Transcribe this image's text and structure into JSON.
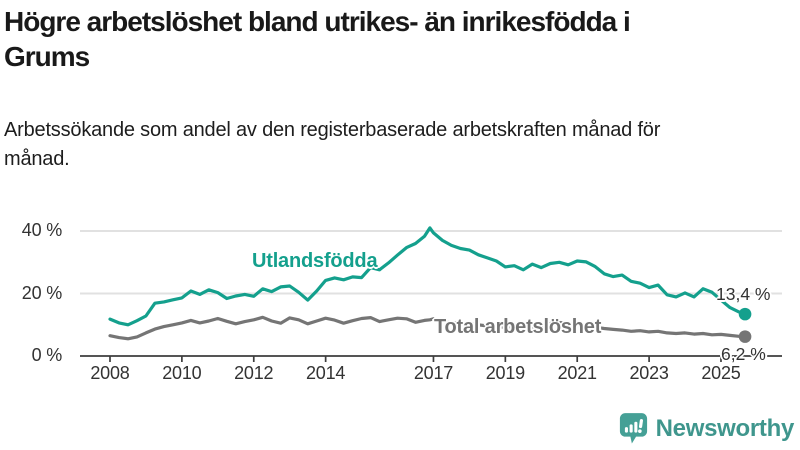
{
  "header": {
    "title": "Högre arbetslöshet bland utrikes- än inrikesfödda i Grums",
    "subtitle": "Arbetssökande som andel av den registerbaserade arbetskraften månad för månad."
  },
  "colors": {
    "series_foreign_born": "#14a08d",
    "series_total": "#757575",
    "gridline": "#e1e1e1",
    "axis": "#3d3d3d",
    "tick_text": "#333333",
    "logo_teal": "#45a096",
    "brand_text": "#3f968d"
  },
  "chart_data": {
    "type": "line",
    "title": "Högre arbetslöshet bland utrikes- än inrikesfödda i Grums",
    "subtitle": "Arbetssökande som andel av den registerbaserade arbetskraften månad för månad.",
    "xlabel": "",
    "ylabel": "",
    "unit": "%",
    "ylim": [
      0,
      44
    ],
    "xlim": [
      2007.2,
      2026.3
    ],
    "grid": "horizontal",
    "y_ticks": [
      {
        "value": 0,
        "label": "0 %"
      },
      {
        "value": 20,
        "label": "20 %"
      },
      {
        "value": 40,
        "label": "40 %"
      }
    ],
    "x_ticks": [
      {
        "value": 2008,
        "label": "2008"
      },
      {
        "value": 2010,
        "label": "2010"
      },
      {
        "value": 2012,
        "label": "2012"
      },
      {
        "value": 2014,
        "label": "2014"
      },
      {
        "value": 2017,
        "label": "2017"
      },
      {
        "value": 2019,
        "label": "2019"
      },
      {
        "value": 2021,
        "label": "2021"
      },
      {
        "value": 2023,
        "label": "2023"
      },
      {
        "value": 2025,
        "label": "2025"
      }
    ],
    "x": [
      2008,
      2008.25,
      2008.5,
      2008.75,
      2009,
      2009.25,
      2009.5,
      2009.75,
      2010,
      2010.25,
      2010.5,
      2010.75,
      2011,
      2011.25,
      2011.5,
      2011.75,
      2012,
      2012.25,
      2012.5,
      2012.75,
      2013,
      2013.25,
      2013.5,
      2013.75,
      2014,
      2014.25,
      2014.5,
      2014.75,
      2015,
      2015.25,
      2015.5,
      2015.75,
      2016,
      2016.25,
      2016.5,
      2016.75,
      2016.9,
      2017,
      2017.25,
      2017.5,
      2017.75,
      2018,
      2018.25,
      2018.5,
      2018.75,
      2019,
      2019.25,
      2019.5,
      2019.75,
      2020,
      2020.25,
      2020.5,
      2020.75,
      2021,
      2021.25,
      2021.5,
      2021.75,
      2022,
      2022.25,
      2022.5,
      2022.75,
      2023,
      2023.25,
      2023.5,
      2023.75,
      2024,
      2024.25,
      2024.5,
      2024.75,
      2025,
      2025.25,
      2025.5,
      2025.67
    ],
    "series": [
      {
        "name": "Utlandsfödda",
        "color": "#14a08d",
        "end_label": "13,4 %",
        "end_value": 13.4,
        "values": [
          11.8,
          10.6,
          10.0,
          11.3,
          12.8,
          16.9,
          17.3,
          18.0,
          18.6,
          20.8,
          19.7,
          21.2,
          20.3,
          18.4,
          19.2,
          19.7,
          19.1,
          21.5,
          20.6,
          22.1,
          22.4,
          20.4,
          17.9,
          20.8,
          24.2,
          25.0,
          24.4,
          25.3,
          25.1,
          28.3,
          27.6,
          29.8,
          32.3,
          34.7,
          36.0,
          38.3,
          41.0,
          39.4,
          37.0,
          35.4,
          34.4,
          33.9,
          32.4,
          31.4,
          30.4,
          28.5,
          28.9,
          27.6,
          29.4,
          28.3,
          29.6,
          30.0,
          29.2,
          30.4,
          30.1,
          28.6,
          26.3,
          25.4,
          25.9,
          23.9,
          23.3,
          21.9,
          22.7,
          19.6,
          18.9,
          20.2,
          18.9,
          21.5,
          20.4,
          17.9,
          15.5,
          14.1,
          13.4
        ]
      },
      {
        "name": "Total arbetslöshet",
        "color": "#757575",
        "end_label": "6,2 %",
        "end_value": 6.2,
        "values": [
          6.5,
          5.9,
          5.5,
          6.1,
          7.4,
          8.6,
          9.4,
          10.0,
          10.6,
          11.4,
          10.6,
          11.2,
          12.0,
          11.1,
          10.3,
          11.0,
          11.6,
          12.4,
          11.2,
          10.5,
          12.2,
          11.6,
          10.3,
          11.2,
          12.1,
          11.5,
          10.5,
          11.3,
          12.0,
          12.3,
          11.0,
          11.6,
          12.1,
          11.9,
          10.8,
          11.4,
          11.6,
          11.9,
          11.2,
          10.7,
          10.3,
          10.5,
          10.0,
          9.6,
          9.3,
          9.2,
          9.5,
          8.9,
          9.3,
          9.6,
          10.4,
          10.8,
          10.2,
          10.4,
          9.9,
          9.2,
          8.8,
          8.5,
          8.3,
          7.9,
          8.1,
          7.7,
          7.9,
          7.4,
          7.2,
          7.4,
          7.0,
          7.2,
          6.8,
          6.9,
          6.6,
          6.3,
          6.2
        ]
      }
    ],
    "legend": "inline-labels"
  },
  "footer": {
    "brand": "Newsworthy"
  }
}
